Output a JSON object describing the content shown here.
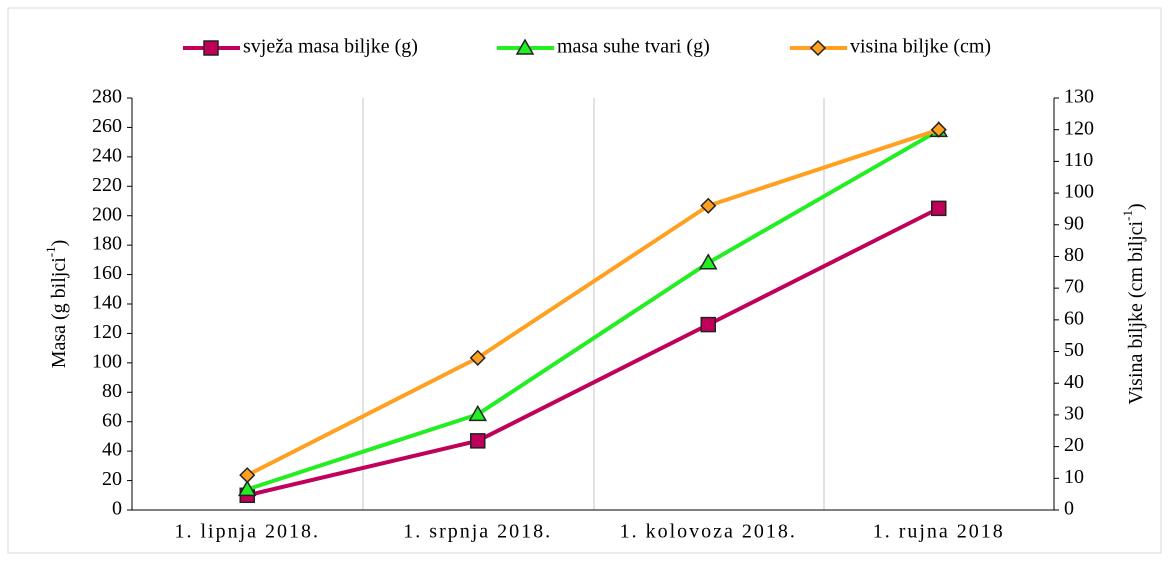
{
  "chart_data": {
    "type": "line",
    "categories": [
      "1. lipnja 2018.",
      "1. srpnja 2018.",
      "1. kolovoza 2018.",
      "1. rujna 2018"
    ],
    "series": [
      {
        "name": "svježa masa biljke (g)",
        "color": "#c0005a",
        "marker": "square",
        "values": [
          10,
          47,
          126,
          205
        ]
      },
      {
        "name": "masa suhe tvari (g)",
        "color": "#22ee22",
        "marker": "triangle",
        "values": [
          14,
          65,
          168,
          258
        ]
      },
      {
        "name": "visina biljke (cm)",
        "color": "#ffa020",
        "marker": "diamond",
        "axis": "y2",
        "values": [
          11,
          48,
          96,
          120
        ]
      }
    ],
    "ylabel": [
      "Masa (g biljci",
      "-1",
      ")"
    ],
    "y2label": [
      "Visina biljke (cm biljci",
      "-1",
      ")"
    ],
    "ylim": [
      0,
      280
    ],
    "yticks": [
      0,
      20,
      40,
      60,
      80,
      100,
      120,
      140,
      160,
      180,
      200,
      220,
      240,
      260,
      280
    ],
    "y2lim": [
      0,
      130
    ],
    "y2ticks": [
      0,
      10,
      20,
      30,
      40,
      50,
      60,
      70,
      80,
      90,
      100,
      110,
      120,
      130
    ],
    "legend": "top"
  }
}
